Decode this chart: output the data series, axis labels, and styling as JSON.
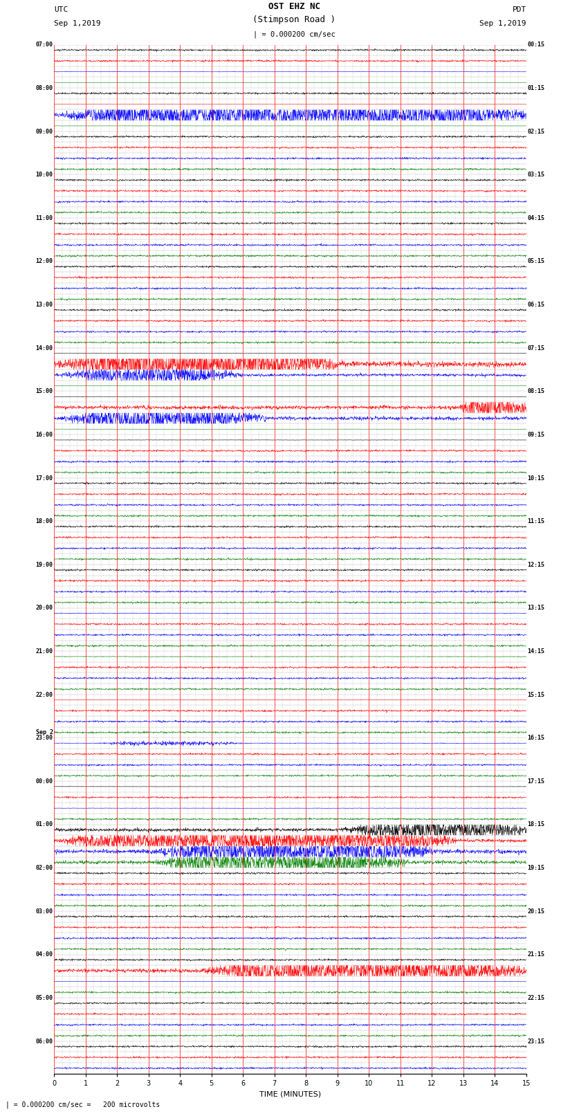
{
  "title_line1": "OST EHZ NC",
  "title_line2": "(Stimpson Road )",
  "scale_label": "| = 0.000200 cm/sec",
  "footer_label": "| = 0.000200 cm/sec =   200 microvolts",
  "utc_label": "UTC",
  "utc_date": "Sep 1,2019",
  "pdt_label": "PDT",
  "pdt_date": "Sep 1,2019",
  "xlabel": "TIME (MINUTES)",
  "xlim": [
    0,
    15
  ],
  "bg_color": "#ffffff",
  "grid_color_major": "#ff0000",
  "trace_colors": [
    "#000000",
    "#ff0000",
    "#0000ff",
    "#008000"
  ],
  "figsize": [
    8.5,
    16.13
  ],
  "dpi": 100,
  "left_time_labels": [
    "07:00",
    "",
    "",
    "",
    "08:00",
    "",
    "",
    "",
    "09:00",
    "",
    "",
    "",
    "10:00",
    "",
    "",
    "",
    "11:00",
    "",
    "",
    "",
    "12:00",
    "",
    "",
    "",
    "13:00",
    "",
    "",
    "",
    "14:00",
    "",
    "",
    "",
    "15:00",
    "",
    "",
    "",
    "16:00",
    "",
    "",
    "",
    "17:00",
    "",
    "",
    "",
    "18:00",
    "",
    "",
    "",
    "19:00",
    "",
    "",
    "",
    "20:00",
    "",
    "",
    "",
    "21:00",
    "",
    "",
    "",
    "22:00",
    "",
    "",
    "",
    "23:00",
    "",
    "",
    "",
    "00:00",
    "",
    "",
    "",
    "01:00",
    "",
    "",
    "",
    "02:00",
    "",
    "",
    "",
    "03:00",
    "",
    "",
    "",
    "04:00",
    "",
    "",
    "",
    "05:00",
    "",
    "",
    "",
    "06:00",
    "",
    ""
  ],
  "right_time_labels": [
    "00:15",
    "",
    "",
    "",
    "01:15",
    "",
    "",
    "",
    "02:15",
    "",
    "",
    "",
    "03:15",
    "",
    "",
    "",
    "04:15",
    "",
    "",
    "",
    "05:15",
    "",
    "",
    "",
    "06:15",
    "",
    "",
    "",
    "07:15",
    "",
    "",
    "",
    "08:15",
    "",
    "",
    "",
    "09:15",
    "",
    "",
    "",
    "10:15",
    "",
    "",
    "",
    "11:15",
    "",
    "",
    "",
    "12:15",
    "",
    "",
    "",
    "13:15",
    "",
    "",
    "",
    "14:15",
    "",
    "",
    "",
    "15:15",
    "",
    "",
    "",
    "16:15",
    "",
    "",
    "",
    "17:15",
    "",
    "",
    "",
    "18:15",
    "",
    "",
    "",
    "19:15",
    "",
    "",
    "",
    "20:15",
    "",
    "",
    "",
    "21:15",
    "",
    "",
    "",
    "22:15",
    "",
    "",
    "",
    "23:15",
    "",
    ""
  ],
  "sep2_row": 64,
  "trace_amplitudes": {
    "default_noise": 0.04,
    "active_rows": {
      "2": {
        "noise": 0.07,
        "color_idx": 2
      },
      "3": {
        "noise": 0.04,
        "color_idx": 3
      },
      "5": {
        "noise": 0.05,
        "color_idx": 1
      },
      "6": {
        "noise": 0.55,
        "color_idx": 2,
        "region": [
          0.0,
          1.0
        ]
      },
      "7": {
        "noise": 0.04,
        "color_idx": 3
      },
      "28": {
        "noise": 0.06,
        "color_idx": 0
      },
      "29": {
        "noise": 0.8,
        "color_idx": 1,
        "region": [
          0.0,
          0.6
        ]
      },
      "30": {
        "noise": 0.4,
        "color_idx": 2,
        "region": [
          0.0,
          0.4
        ]
      },
      "31": {
        "noise": 0.04,
        "color_idx": 3
      },
      "32": {
        "noise": 0.06,
        "color_idx": 0
      },
      "33": {
        "noise": 0.55,
        "color_idx": 1,
        "region": [
          0.85,
          1.0
        ]
      },
      "34": {
        "noise": 0.5,
        "color_idx": 2,
        "region": [
          0.0,
          0.45
        ]
      },
      "35": {
        "noise": 0.04,
        "color_idx": 3
      },
      "36": {
        "noise": 0.07,
        "color_idx": 0
      },
      "52": {
        "noise": 0.1,
        "color_idx": 2
      },
      "56": {
        "noise": 0.1,
        "color_idx": 3
      },
      "60": {
        "noise": 0.06,
        "color_idx": 1
      },
      "64": {
        "noise": 0.1,
        "color_idx": 2,
        "region": [
          0.08,
          0.4
        ]
      },
      "68": {
        "noise": 0.07,
        "color_idx": 0
      },
      "70": {
        "noise": 0.08,
        "color_idx": 2
      },
      "72": {
        "noise": 0.5,
        "color_idx": 0,
        "region": [
          0.6,
          1.0
        ]
      },
      "73": {
        "noise": 0.5,
        "color_idx": 1,
        "region": [
          0.0,
          0.85
        ]
      },
      "74": {
        "noise": 0.6,
        "color_idx": 2,
        "region": [
          0.2,
          0.8
        ]
      },
      "75": {
        "noise": 0.5,
        "color_idx": 3,
        "region": [
          0.2,
          0.75
        ]
      },
      "85": {
        "noise": 0.55,
        "color_idx": 1,
        "region": [
          0.3,
          1.0
        ]
      },
      "86": {
        "noise": 0.06,
        "color_idx": 2
      }
    }
  }
}
